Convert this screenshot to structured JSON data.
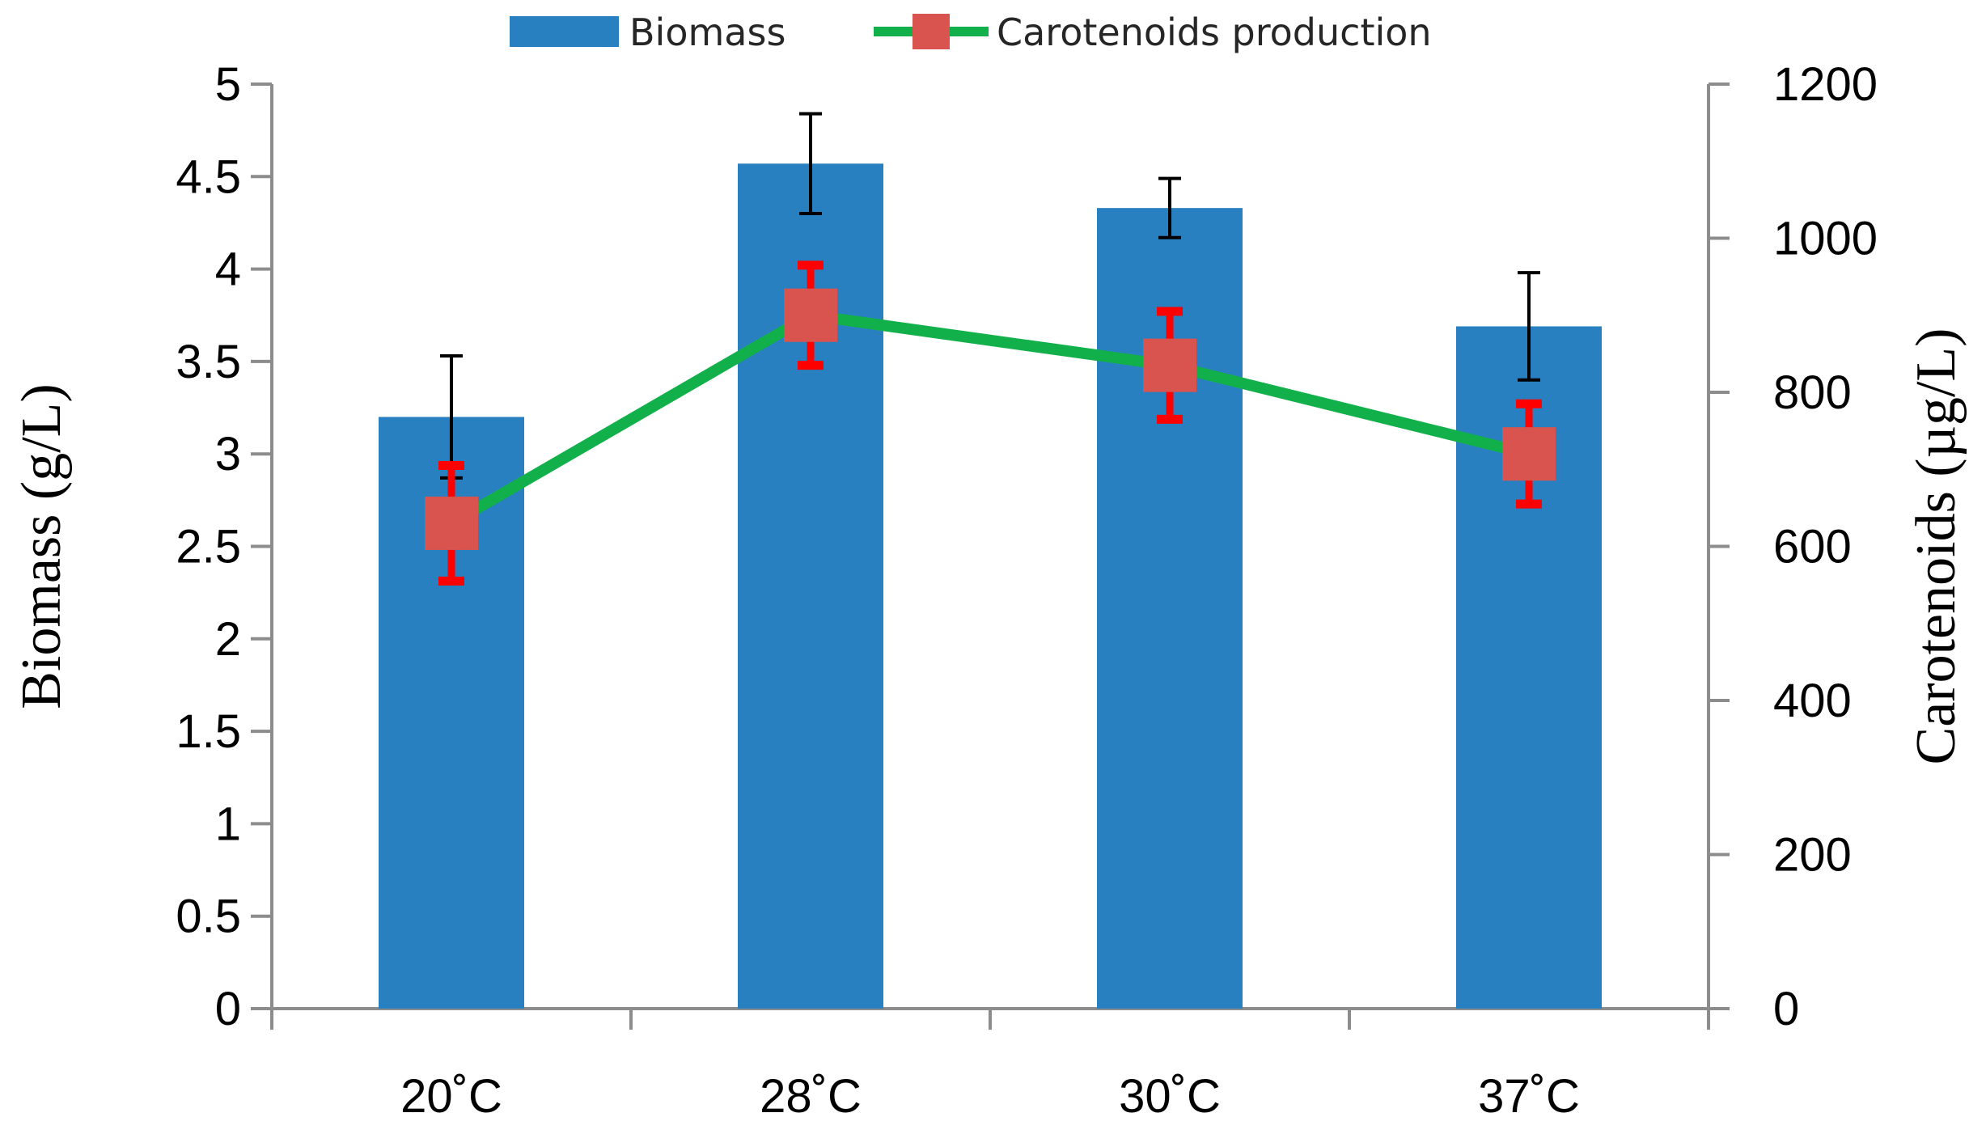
{
  "chart_data": {
    "type": "bar+line",
    "categories": [
      "20˚C",
      "28˚C",
      "30˚C",
      "37˚C"
    ],
    "series": [
      {
        "name": "Biomass",
        "kind": "bar",
        "axis": "left",
        "values": [
          3.2,
          4.57,
          4.33,
          3.69
        ],
        "errors": [
          0.33,
          0.27,
          0.16,
          0.29
        ],
        "color": "#2980C0",
        "error_color": "#000000"
      },
      {
        "name": "Carotenoids production",
        "kind": "line",
        "axis": "right",
        "values": [
          630,
          900,
          835,
          720
        ],
        "errors": [
          75,
          65,
          70,
          65
        ],
        "color": "#12B04A",
        "marker_color": "#D9534F",
        "error_color": "#FF0000"
      }
    ],
    "y_left": {
      "label": "Biomass (g/L)",
      "ylim": [
        0,
        5
      ],
      "ticks": [
        "0",
        "0.5",
        "1",
        "1.5",
        "2",
        "2.5",
        "3",
        "3.5",
        "4",
        "4.5",
        "5"
      ]
    },
    "y_right": {
      "label": "Carotenoids (µg/L)",
      "ylim": [
        0,
        1200
      ],
      "ticks": [
        "0",
        "200",
        "400",
        "600",
        "800",
        "1000",
        "1200"
      ]
    },
    "legend": {
      "position": "top-center",
      "items": [
        "Biomass",
        "Carotenoids production"
      ]
    },
    "axis_color": "#8C8C8C"
  }
}
